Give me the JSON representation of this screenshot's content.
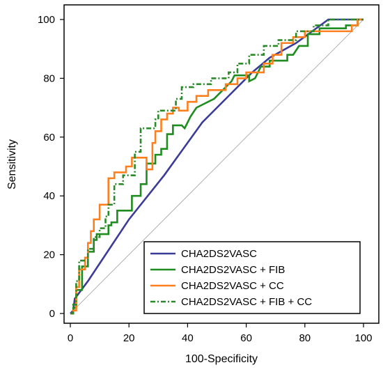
{
  "chart_data": {
    "type": "line",
    "title": "",
    "xlabel": "100-Specificity",
    "ylabel": "Sensitivity",
    "xlim": [
      0,
      100
    ],
    "ylim": [
      0,
      100
    ],
    "x_ticks": [
      "0",
      "20",
      "40",
      "60",
      "80",
      "100"
    ],
    "y_ticks": [
      "0",
      "20",
      "40",
      "60",
      "80",
      "100"
    ],
    "grid": false,
    "legend_position": "bottom-right",
    "reference_line": {
      "points": [
        [
          0,
          0
        ],
        [
          100,
          100
        ]
      ],
      "color": "#b0b0b0"
    },
    "series": [
      {
        "name": "CHA2DS2VASC",
        "color": "#3b3b98",
        "style": "solid",
        "points": [
          [
            0,
            0
          ],
          [
            1,
            1
          ],
          [
            1.5,
            5
          ],
          [
            3,
            7
          ],
          [
            6,
            11
          ],
          [
            12,
            20
          ],
          [
            20,
            32
          ],
          [
            32,
            47
          ],
          [
            45,
            65
          ],
          [
            55,
            75
          ],
          [
            62,
            82
          ],
          [
            68,
            87
          ],
          [
            77,
            92
          ],
          [
            88,
            100
          ],
          [
            100,
            100
          ]
        ]
      },
      {
        "name": "CHA2DS2VASC + FIB",
        "color": "#1e8c1e",
        "style": "solid",
        "points": [
          [
            0,
            0
          ],
          [
            1,
            0
          ],
          [
            1,
            2
          ],
          [
            2,
            2
          ],
          [
            2,
            8
          ],
          [
            4,
            8
          ],
          [
            4,
            16
          ],
          [
            6,
            16
          ],
          [
            6,
            21
          ],
          [
            8,
            21
          ],
          [
            8,
            25
          ],
          [
            9,
            25
          ],
          [
            9,
            27
          ],
          [
            13,
            27
          ],
          [
            13,
            30
          ],
          [
            14,
            30
          ],
          [
            14,
            31
          ],
          [
            16,
            31
          ],
          [
            16,
            35
          ],
          [
            21,
            35
          ],
          [
            21,
            40
          ],
          [
            24,
            40
          ],
          [
            24,
            44
          ],
          [
            26,
            44
          ],
          [
            26,
            51
          ],
          [
            29,
            51
          ],
          [
            29,
            54
          ],
          [
            31,
            54
          ],
          [
            31,
            56
          ],
          [
            33,
            56
          ],
          [
            33,
            61
          ],
          [
            35,
            61
          ],
          [
            35,
            64
          ],
          [
            38,
            64
          ],
          [
            39,
            63
          ],
          [
            41,
            67
          ],
          [
            43,
            70
          ],
          [
            45,
            71
          ],
          [
            49,
            73
          ],
          [
            52,
            76
          ],
          [
            55,
            79
          ],
          [
            56,
            81
          ],
          [
            61,
            81
          ],
          [
            61,
            79
          ],
          [
            63,
            80
          ],
          [
            65,
            84
          ],
          [
            68,
            84
          ],
          [
            68,
            86
          ],
          [
            74,
            86
          ],
          [
            74,
            88
          ],
          [
            76,
            88
          ],
          [
            78,
            91
          ],
          [
            81,
            91
          ],
          [
            81,
            95
          ],
          [
            85,
            95
          ],
          [
            85,
            97
          ],
          [
            94,
            97
          ],
          [
            94,
            98
          ],
          [
            98,
            98
          ],
          [
            98,
            100
          ],
          [
            100,
            100
          ]
        ]
      },
      {
        "name": "CHA2DS2VASC + CC",
        "color": "#ff7f1e",
        "style": "solid",
        "points": [
          [
            0,
            0
          ],
          [
            1,
            0
          ],
          [
            1,
            1
          ],
          [
            2,
            1
          ],
          [
            2,
            9
          ],
          [
            3,
            9
          ],
          [
            3,
            15
          ],
          [
            5,
            15
          ],
          [
            5,
            19
          ],
          [
            6,
            19
          ],
          [
            6,
            24
          ],
          [
            7,
            24
          ],
          [
            7,
            28
          ],
          [
            8,
            28
          ],
          [
            8,
            32
          ],
          [
            10,
            32
          ],
          [
            10,
            37
          ],
          [
            13,
            37
          ],
          [
            13,
            46
          ],
          [
            15,
            46
          ],
          [
            15,
            48
          ],
          [
            19,
            48
          ],
          [
            19,
            50
          ],
          [
            21,
            50
          ],
          [
            21,
            53
          ],
          [
            26,
            53
          ],
          [
            26,
            49
          ],
          [
            28,
            49
          ],
          [
            28,
            58
          ],
          [
            29,
            58
          ],
          [
            29,
            62
          ],
          [
            31,
            62
          ],
          [
            31,
            66
          ],
          [
            33,
            66
          ],
          [
            33,
            68
          ],
          [
            35,
            68
          ],
          [
            35,
            70
          ],
          [
            37,
            70
          ],
          [
            37,
            69
          ],
          [
            40,
            69
          ],
          [
            40,
            72
          ],
          [
            43,
            72
          ],
          [
            43,
            74
          ],
          [
            47,
            74
          ],
          [
            47,
            76
          ],
          [
            53,
            76
          ],
          [
            53,
            78
          ],
          [
            57,
            78
          ],
          [
            57,
            80
          ],
          [
            60,
            80
          ],
          [
            60,
            82
          ],
          [
            66,
            82
          ],
          [
            66,
            85
          ],
          [
            69,
            85
          ],
          [
            69,
            88
          ],
          [
            72,
            88
          ],
          [
            72,
            92
          ],
          [
            76,
            92
          ],
          [
            76,
            94
          ],
          [
            80,
            94
          ],
          [
            80,
            96
          ],
          [
            96,
            96
          ],
          [
            96,
            98
          ],
          [
            98,
            98
          ],
          [
            98,
            100
          ],
          [
            100,
            100
          ]
        ]
      },
      {
        "name": "CHA2DS2VASC + FIB + CC",
        "color": "#2a8a2a",
        "style": "dashdot",
        "points": [
          [
            0,
            0
          ],
          [
            1,
            0
          ],
          [
            1,
            3
          ],
          [
            2,
            3
          ],
          [
            2,
            11
          ],
          [
            3,
            11
          ],
          [
            3,
            18
          ],
          [
            6,
            18
          ],
          [
            6,
            22
          ],
          [
            8,
            22
          ],
          [
            8,
            26
          ],
          [
            10,
            26
          ],
          [
            10,
            29
          ],
          [
            12,
            29
          ],
          [
            12,
            33
          ],
          [
            13,
            33
          ],
          [
            13,
            37
          ],
          [
            15,
            37
          ],
          [
            15,
            44
          ],
          [
            18,
            44
          ],
          [
            18,
            47
          ],
          [
            22,
            47
          ],
          [
            22,
            55
          ],
          [
            24,
            55
          ],
          [
            24,
            63
          ],
          [
            29,
            63
          ],
          [
            29,
            66
          ],
          [
            30,
            66
          ],
          [
            30,
            69
          ],
          [
            36,
            69
          ],
          [
            36,
            73
          ],
          [
            38,
            73
          ],
          [
            38,
            77
          ],
          [
            42,
            77
          ],
          [
            42,
            78
          ],
          [
            48,
            78
          ],
          [
            48,
            80
          ],
          [
            54,
            80
          ],
          [
            54,
            82
          ],
          [
            57,
            82
          ],
          [
            57,
            85
          ],
          [
            61,
            85
          ],
          [
            61,
            88
          ],
          [
            66,
            88
          ],
          [
            66,
            91
          ],
          [
            71,
            91
          ],
          [
            71,
            93
          ],
          [
            77,
            93
          ],
          [
            77,
            96
          ],
          [
            83,
            96
          ],
          [
            83,
            98
          ],
          [
            88,
            98
          ],
          [
            88,
            100
          ],
          [
            100,
            100
          ]
        ]
      }
    ]
  }
}
